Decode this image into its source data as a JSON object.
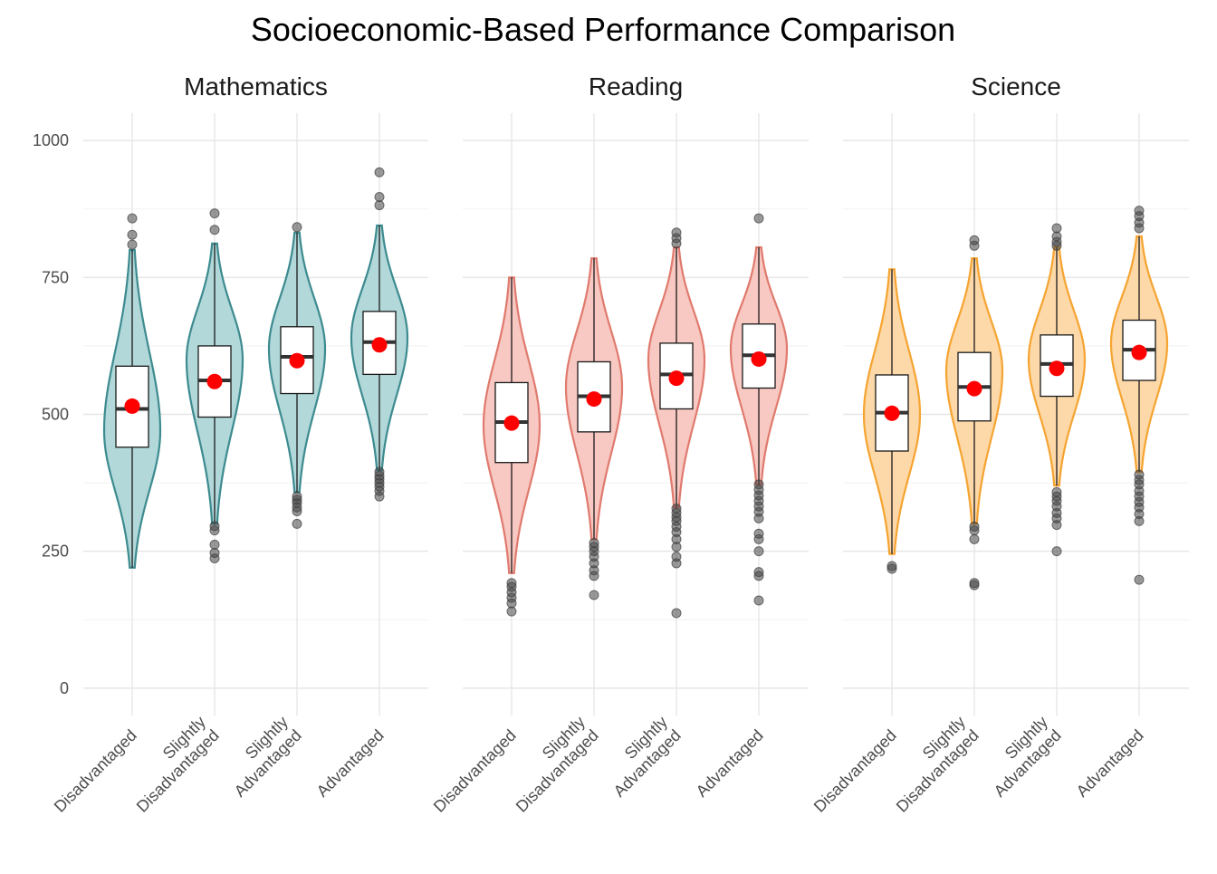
{
  "chart_data": {
    "type": "violin",
    "title": "Socioeconomic-Based Performance Comparison",
    "xlabel": "",
    "ylabel": "",
    "ylim": [
      -50,
      1050
    ],
    "yticks": [
      0,
      250,
      500,
      750,
      1000
    ],
    "categories": [
      "Disadvantaged",
      "Slightly\nDisadvantaged",
      "Slightly\nAdvantaged",
      "Advantaged"
    ],
    "grid": true,
    "legend": "none",
    "mean_marker_color": "#ff0000",
    "facets": [
      {
        "name": "Mathematics",
        "fill": "#b2d8da",
        "stroke": "#3d8b8f",
        "groups": [
          {
            "min": 220,
            "q1": 440,
            "median": 510,
            "q3": 588,
            "max": 800,
            "mean": 515,
            "mode": 470,
            "outliers": [
              810,
              828,
              858
            ]
          },
          {
            "min": 300,
            "q1": 495,
            "median": 562,
            "q3": 625,
            "max": 812,
            "mean": 560,
            "mode": 600,
            "outliers": [
              237,
              247,
              262,
              288,
              296,
              837,
              867
            ]
          },
          {
            "min": 358,
            "q1": 538,
            "median": 605,
            "q3": 660,
            "max": 832,
            "mean": 598,
            "mode": 620,
            "outliers": [
              300,
              323,
              330,
              338,
              344,
              350,
              842
            ]
          },
          {
            "min": 398,
            "q1": 573,
            "median": 632,
            "q3": 688,
            "max": 845,
            "mean": 627,
            "mode": 640,
            "outliers": [
              350,
              360,
              368,
              375,
              382,
              388,
              395,
              882,
              897,
              942
            ]
          }
        ]
      },
      {
        "name": "Reading",
        "fill": "#f8c8c2",
        "stroke": "#e07a6e",
        "groups": [
          {
            "min": 210,
            "q1": 412,
            "median": 486,
            "q3": 558,
            "max": 750,
            "mean": 484,
            "mode": 480,
            "outliers": [
              140,
              155,
              165,
              175,
              185,
              192
            ]
          },
          {
            "min": 272,
            "q1": 468,
            "median": 533,
            "q3": 596,
            "max": 785,
            "mean": 528,
            "mode": 550,
            "outliers": [
              170,
              205,
              215,
              228,
              240,
              250,
              258,
              265
            ]
          },
          {
            "min": 330,
            "q1": 510,
            "median": 573,
            "q3": 630,
            "max": 805,
            "mean": 566,
            "mode": 600,
            "outliers": [
              137,
              228,
              240,
              258,
              272,
              285,
              295,
              305,
              312,
              320,
              328,
              812,
              822,
              832
            ]
          },
          {
            "min": 372,
            "q1": 548,
            "median": 608,
            "q3": 665,
            "max": 805,
            "mean": 601,
            "mode": 620,
            "outliers": [
              160,
              205,
              212,
              250,
              272,
              282,
              310,
              322,
              332,
              342,
              352,
              362,
              372,
              858
            ]
          }
        ]
      },
      {
        "name": "Science",
        "fill": "#fdd8a8",
        "stroke": "#f5a431",
        "groups": [
          {
            "min": 245,
            "q1": 433,
            "median": 503,
            "q3": 572,
            "max": 765,
            "mean": 502,
            "mode": 500,
            "outliers": [
              218,
              223
            ]
          },
          {
            "min": 300,
            "q1": 488,
            "median": 550,
            "q3": 613,
            "max": 785,
            "mean": 547,
            "mode": 580,
            "outliers": [
              188,
              192,
              272,
              288,
              295,
              808,
              818
            ]
          },
          {
            "min": 370,
            "q1": 533,
            "median": 592,
            "q3": 645,
            "max": 805,
            "mean": 584,
            "mode": 600,
            "outliers": [
              250,
              298,
              310,
              320,
              332,
              342,
              350,
              358,
              808,
              815,
              825,
              840
            ]
          },
          {
            "min": 395,
            "q1": 562,
            "median": 618,
            "q3": 672,
            "max": 825,
            "mean": 613,
            "mode": 630,
            "outliers": [
              198,
              305,
              318,
              330,
              340,
              350,
              360,
              372,
              380,
              390,
              840,
              850,
              862,
              872
            ]
          }
        ]
      }
    ]
  }
}
